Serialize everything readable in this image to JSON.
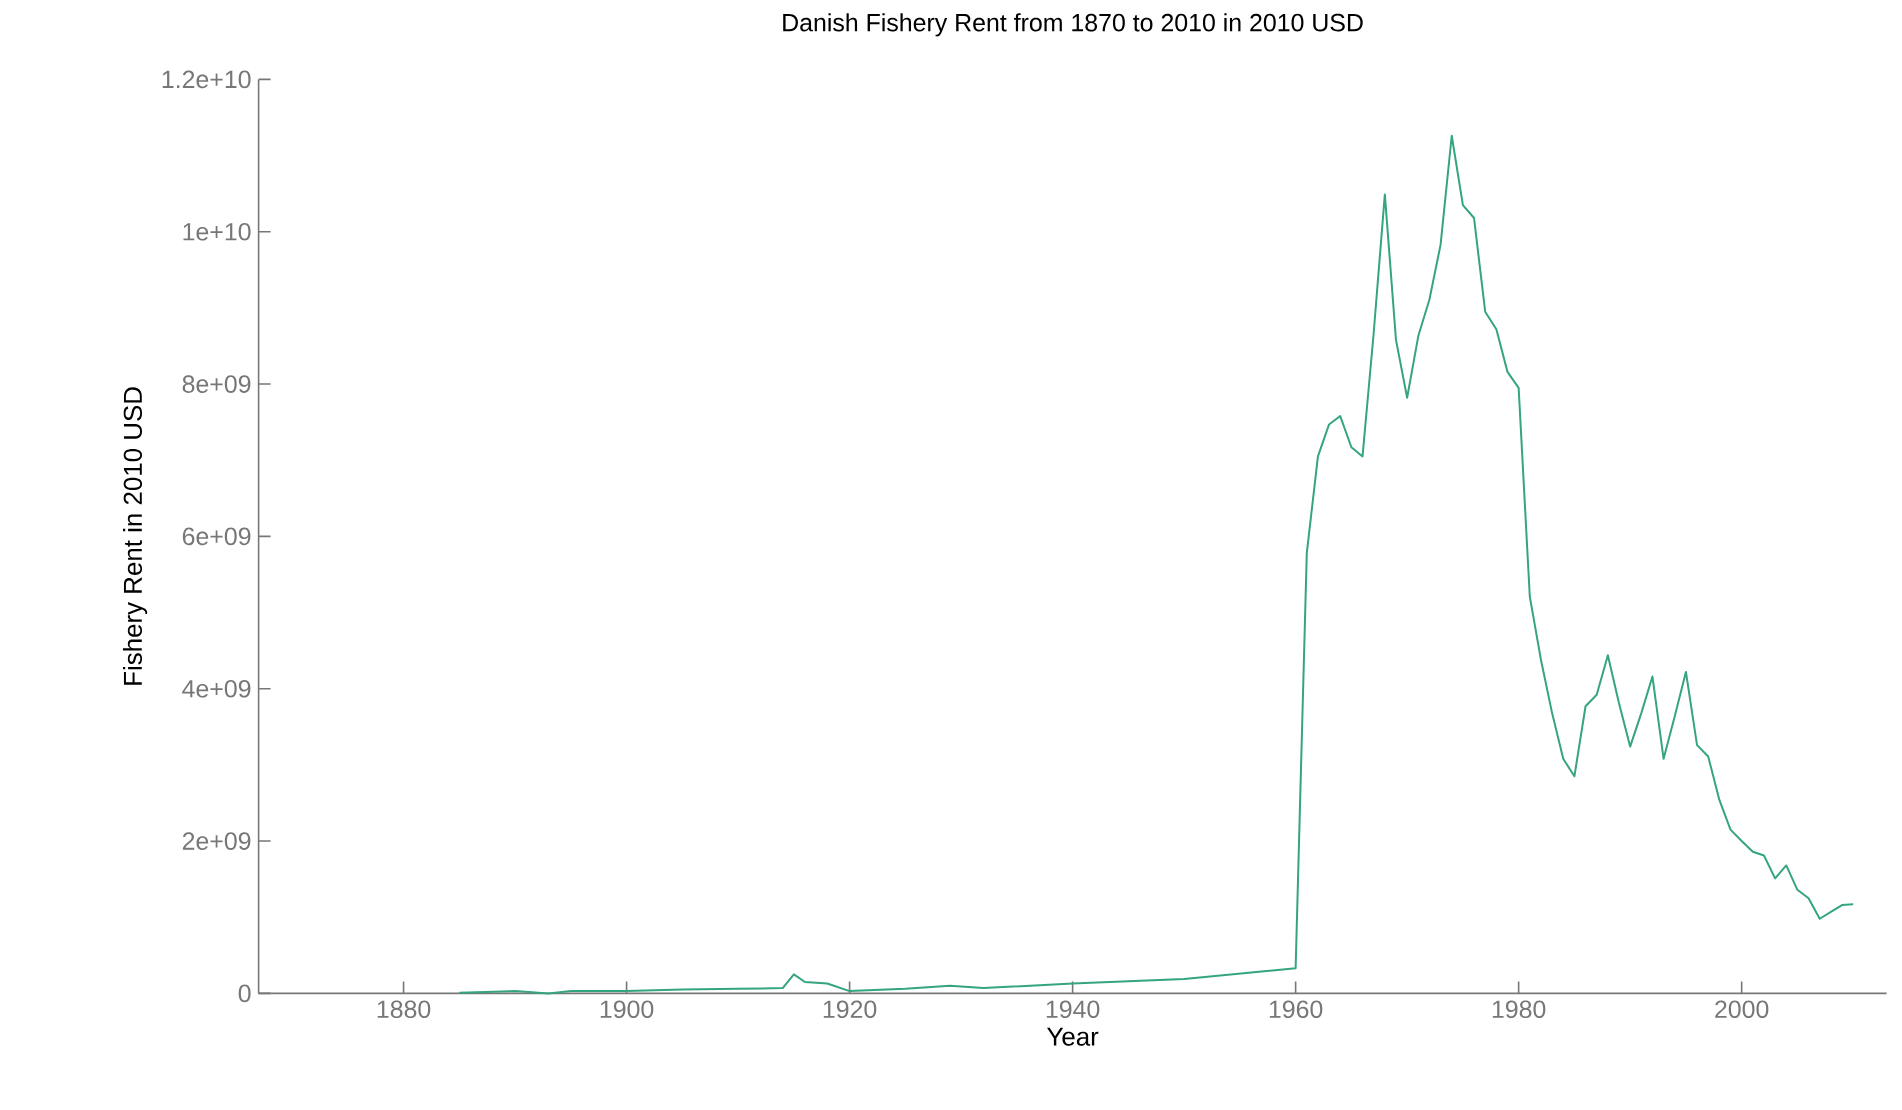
{
  "chart_data": {
    "type": "line",
    "title": "Danish Fishery Rent from 1870 to 2010 in 2010 USD",
    "xlabel": "Year",
    "ylabel": "Fishery Rent in 2010 USD",
    "color": "#34a57d",
    "x": [
      1885,
      1890,
      1893,
      1895,
      1900,
      1905,
      1910,
      1914,
      1915,
      1916,
      1918,
      1920,
      1925,
      1929,
      1932,
      1940,
      1950,
      1960,
      1961,
      1962,
      1963,
      1964,
      1965,
      1966,
      1967,
      1968,
      1969,
      1970,
      1971,
      1972,
      1973,
      1974,
      1975,
      1976,
      1977,
      1978,
      1979,
      1980,
      1981,
      1982,
      1983,
      1984,
      1985,
      1986,
      1987,
      1988,
      1989,
      1990,
      1991,
      1992,
      1993,
      1994,
      1995,
      1996,
      1997,
      1998,
      1999,
      2000,
      2001,
      2002,
      2003,
      2004,
      2005,
      2006,
      2007,
      2008,
      2009,
      2010
    ],
    "values": [
      10000000,
      30000000,
      0,
      30000000,
      30000000,
      50000000,
      60000000,
      70000000,
      250000000,
      150000000,
      130000000,
      30000000,
      60000000,
      100000000,
      70000000,
      130000000,
      190000000,
      330000000,
      5780000000,
      7050000000,
      7470000000,
      7580000000,
      7170000000,
      7050000000,
      8670000000,
      10490000000,
      8580000000,
      7820000000,
      8630000000,
      9110000000,
      9830000000,
      11260000000,
      10350000000,
      10180000000,
      8950000000,
      8720000000,
      8160000000,
      7950000000,
      5210000000,
      4380000000,
      3680000000,
      3080000000,
      2850000000,
      3770000000,
      3920000000,
      4440000000,
      3810000000,
      3240000000,
      3680000000,
      4160000000,
      3080000000,
      3640000000,
      4220000000,
      3260000000,
      3110000000,
      2540000000,
      2150000000,
      2000000000,
      1860000000,
      1810000000,
      1510000000,
      1680000000,
      1360000000,
      1250000000,
      980000000,
      1070000000,
      1160000000,
      1170000000
    ],
    "xlim": [
      1867,
      2013
    ],
    "ylim": [
      0,
      12000000000
    ],
    "xticks": [
      1880,
      1900,
      1920,
      1940,
      1960,
      1980,
      2000
    ],
    "yticks": [
      0,
      {
        "value": 2000000000,
        "label": "2e+09"
      },
      {
        "value": 4000000000,
        "label": "4e+09"
      },
      {
        "value": 6000000000,
        "label": "6e+09"
      },
      {
        "value": 8000000000,
        "label": "8e+09"
      },
      {
        "value": 10000000000,
        "label": "1e+10"
      },
      {
        "value": 12000000000,
        "label": "1.2e+10"
      }
    ]
  }
}
